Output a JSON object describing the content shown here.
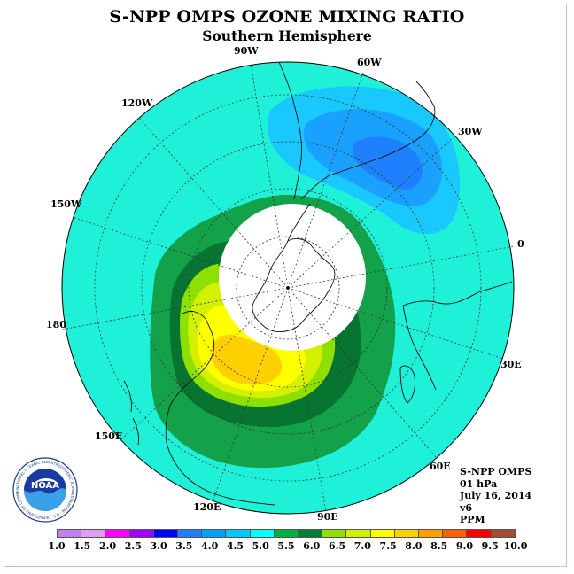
{
  "title": "S-NPP OMPS OZONE MIXING RATIO",
  "subtitle": "Southern Hemisphere",
  "longitude_labels": [
    "90W",
    "60W",
    "30W",
    "0",
    "30E",
    "60E",
    "90E",
    "120E",
    "150E",
    "180",
    "150W",
    "120W"
  ],
  "info": {
    "instrument": "S-NPP OMPS",
    "level": "01 hPa",
    "date": "July 16, 2014",
    "version": "v6",
    "units": "PPM"
  },
  "logo": {
    "text": "NOAA",
    "ring_text": "NATIONAL OCEANIC AND ATMOSPHERIC ADMINISTRATION · U.S. DEPARTMENT OF COMMERCE"
  },
  "colorbar": {
    "ticks": [
      "1.0",
      "1.5",
      "2.0",
      "2.5",
      "3.0",
      "3.5",
      "4.0",
      "4.5",
      "5.0",
      "5.5",
      "6.0",
      "6.5",
      "7.0",
      "7.5",
      "8.0",
      "8.5",
      "9.0",
      "9.5",
      "10.0"
    ],
    "colors": [
      "#c080f0",
      "#e0a0f0",
      "#ff00ff",
      "#a000ff",
      "#0000ff",
      "#1e80ff",
      "#00a0ff",
      "#00c8ff",
      "#00ffff",
      "#00b040",
      "#008030",
      "#90e000",
      "#d0f000",
      "#ffff00",
      "#ffd000",
      "#ffa000",
      "#ff6000",
      "#ff0000",
      "#a05030"
    ]
  }
}
